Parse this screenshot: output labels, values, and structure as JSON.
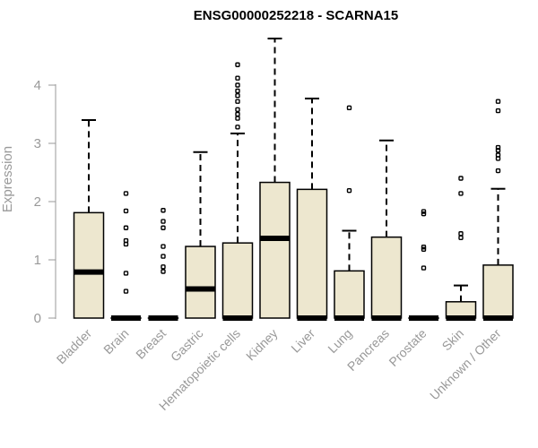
{
  "chart_data": {
    "type": "boxplot",
    "title": "ENSG00000252218 - SCARNA15",
    "xlabel": "",
    "ylabel": "Expression",
    "ylim": [
      0,
      4.2
    ],
    "yticks": [
      0,
      1,
      2,
      3,
      4
    ],
    "box_color": "#ede7cf",
    "categories": [
      "Bladder",
      "Brain",
      "Breast",
      "Gastric",
      "Hematopoietic cells",
      "Kidney",
      "Liver",
      "Lung",
      "Pancreas",
      "Prostate",
      "Skin",
      "Unknown / Other"
    ],
    "series": [
      {
        "name": "Bladder",
        "min": 0,
        "q1": 0,
        "median": 0.79,
        "q3": 1.81,
        "max": 3.4,
        "outliers": []
      },
      {
        "name": "Brain",
        "min": 0,
        "q1": 0,
        "median": 0,
        "q3": 0,
        "max": 0,
        "outliers": [
          0.46,
          0.77,
          1.27,
          1.33,
          1.55,
          1.84,
          2.14
        ]
      },
      {
        "name": "Breast",
        "min": 0,
        "q1": 0,
        "median": 0,
        "q3": 0,
        "max": 0,
        "outliers": [
          0.8,
          0.88,
          1.06,
          1.23,
          1.55,
          1.66,
          1.85
        ]
      },
      {
        "name": "Gastric",
        "min": 0,
        "q1": 0,
        "median": 0.5,
        "q3": 1.23,
        "max": 2.85,
        "outliers": []
      },
      {
        "name": "Hematopoietic cells",
        "min": 0,
        "q1": 0,
        "median": 0,
        "q3": 1.29,
        "max": 3.17,
        "outliers": [
          3.28,
          3.43,
          3.5,
          3.58,
          3.72,
          3.82,
          3.9,
          4.0,
          4.12,
          4.35
        ]
      },
      {
        "name": "Kidney",
        "min": 0,
        "q1": 0,
        "median": 1.37,
        "q3": 2.33,
        "max": 4.8,
        "outliers": []
      },
      {
        "name": "Liver",
        "min": 0,
        "q1": 0,
        "median": 0,
        "q3": 2.21,
        "max": 3.77,
        "outliers": []
      },
      {
        "name": "Lung",
        "min": 0,
        "q1": 0,
        "median": 0,
        "q3": 0.81,
        "max": 1.5,
        "outliers": [
          2.19,
          3.61
        ]
      },
      {
        "name": "Pancreas",
        "min": 0,
        "q1": 0,
        "median": 0,
        "q3": 1.39,
        "max": 3.05,
        "outliers": []
      },
      {
        "name": "Prostate",
        "min": 0,
        "q1": 0,
        "median": 0,
        "q3": 0,
        "max": 0,
        "outliers": [
          0.86,
          1.18,
          1.22,
          1.79,
          1.83
        ]
      },
      {
        "name": "Skin",
        "min": 0,
        "q1": 0,
        "median": 0,
        "q3": 0.28,
        "max": 0.56,
        "outliers": [
          1.38,
          1.45,
          2.14,
          2.4
        ]
      },
      {
        "name": "Unknown / Other",
        "min": 0,
        "q1": 0,
        "median": 0,
        "q3": 0.91,
        "max": 2.22,
        "outliers": [
          2.53,
          2.74,
          2.8,
          2.88,
          2.93,
          3.56,
          3.72
        ]
      }
    ]
  }
}
